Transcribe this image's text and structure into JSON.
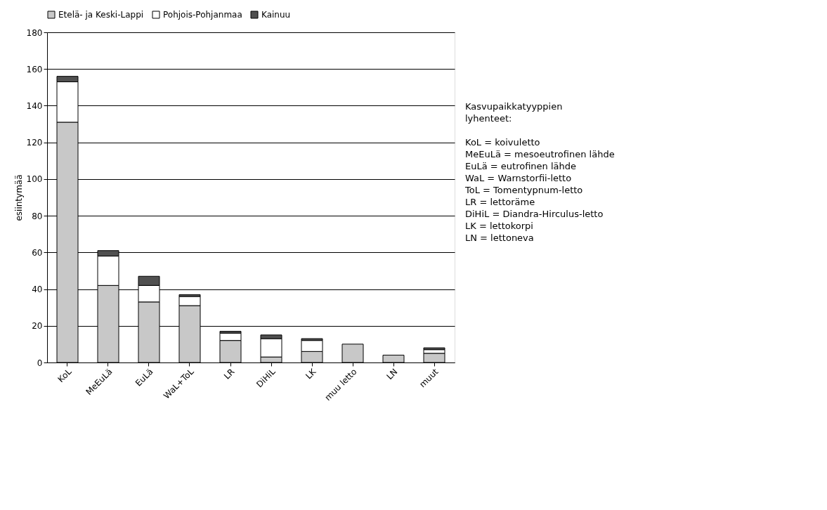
{
  "chart_data": {
    "type": "bar",
    "stacked": true,
    "ylabel": "esiintymää",
    "categories": [
      "KoL",
      "MeEuLä",
      "EuLä",
      "WaL+ToL",
      "LR",
      "DiHiL",
      "LK",
      "muu letto",
      "LN",
      "muut"
    ],
    "series": [
      {
        "name": "Etelä- ja Keski-Lappi",
        "color": "#c8c8c8",
        "values": [
          131,
          42,
          33,
          31,
          12,
          3,
          6,
          10,
          4,
          5
        ]
      },
      {
        "name": "Pohjois-Pohjanmaa",
        "color": "#ffffff",
        "values": [
          22,
          16,
          9,
          5,
          4,
          10,
          6,
          0,
          0,
          2
        ]
      },
      {
        "name": "Kainuu",
        "color": "#505050",
        "values": [
          3,
          3,
          5,
          1,
          1,
          2,
          1,
          0,
          0,
          1
        ]
      }
    ],
    "ylim": [
      0,
      180
    ],
    "yticks": [
      0,
      20,
      40,
      60,
      80,
      100,
      120,
      140,
      160,
      180
    ],
    "grid": "y",
    "legend": "top",
    "annotations": [
      "Kasvupaikkatyyppien lyhenteet:",
      "KoL = koivuletto",
      "MeEuLä = mesoeutrofinen lähde",
      "EuLä = eutrofinen lähde",
      "WaL = Warnstorfii-letto",
      "ToL = Tomentypnum-letto",
      "LR = lettoräme",
      "DiHiL = Diandra-Hirculus-letto",
      "LK = lettokorpi",
      "LN = lettoneva"
    ]
  }
}
